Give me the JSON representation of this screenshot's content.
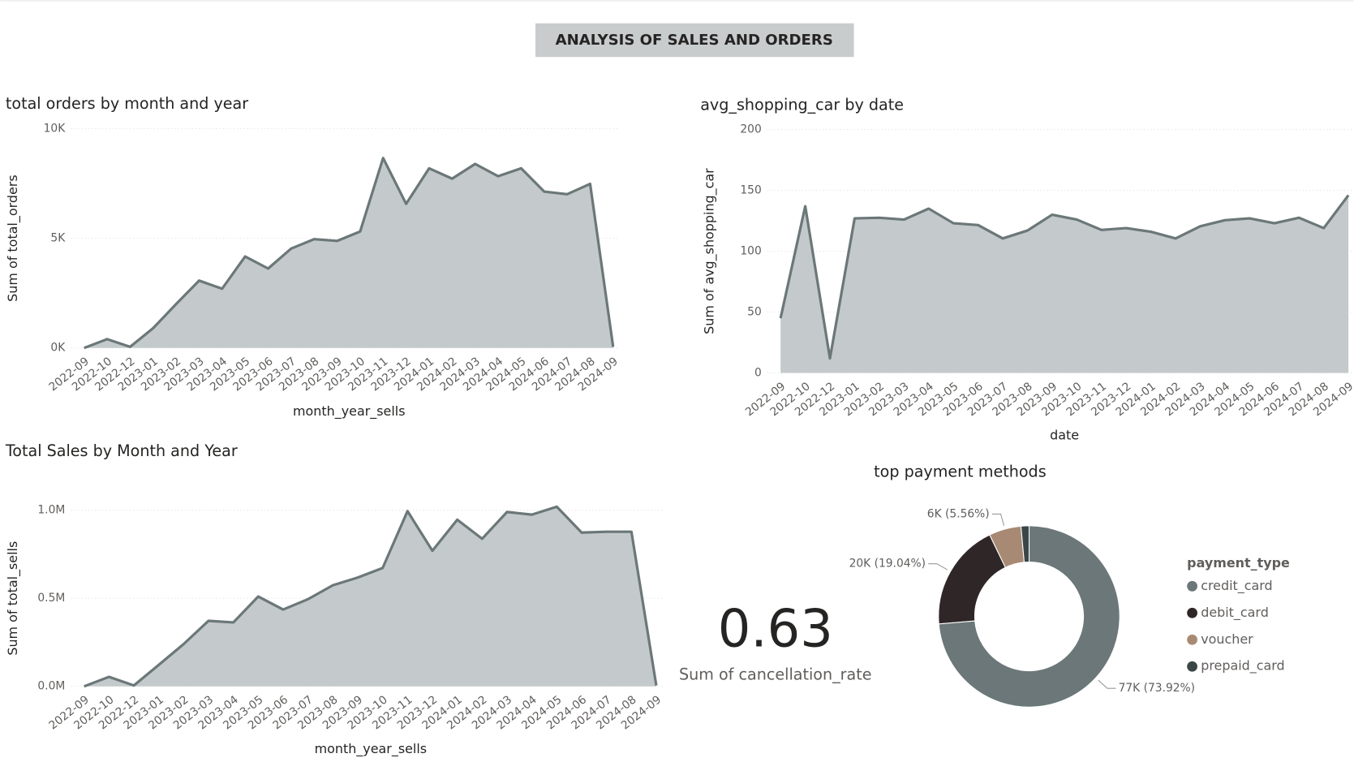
{
  "header": {
    "title": "ANALYSIS OF SALES AND ORDERS"
  },
  "card": {
    "value": "0.63",
    "label": "Sum of cancellation_rate"
  },
  "chart_data": [
    {
      "type": "area",
      "title": "total orders by month and year",
      "x_label": "month_year_sells",
      "y_label": "Sum of total_orders",
      "categories": [
        "2022-09",
        "2022-10",
        "2022-12",
        "2023-01",
        "2023-02",
        "2023-03",
        "2023-04",
        "2023-05",
        "2023-06",
        "2023-07",
        "2023-08",
        "2023-09",
        "2023-10",
        "2023-11",
        "2023-12",
        "2024-01",
        "2024-02",
        "2024-03",
        "2024-04",
        "2024-05",
        "2024-06",
        "2024-07",
        "2024-08",
        "2024-09"
      ],
      "values": [
        0,
        400,
        50,
        900,
        2000,
        3070,
        2700,
        4170,
        3620,
        4530,
        4960,
        4880,
        5310,
        8660,
        6570,
        8190,
        7720,
        8390,
        7830,
        8190,
        7130,
        7010,
        7480,
        50
      ],
      "color": "#6b7778",
      "fill": "#c4c9cb",
      "ylim": [
        0,
        10000
      ],
      "yticks": [
        {
          "value": 0,
          "label": "0K"
        },
        {
          "value": 5000,
          "label": "5K"
        },
        {
          "value": 10000,
          "label": "10K"
        }
      ],
      "grid": true
    },
    {
      "type": "area",
      "title": "avg_shopping_car by date",
      "x_label": "date",
      "y_label": "Sum of avg_shopping_car",
      "categories": [
        "2022-09",
        "2022-10",
        "2022-12",
        "2023-01",
        "2023-02",
        "2023-03",
        "2023-04",
        "2023-05",
        "2023-06",
        "2023-07",
        "2023-08",
        "2023-09",
        "2023-10",
        "2023-11",
        "2023-12",
        "2024-01",
        "2024-02",
        "2024-03",
        "2024-04",
        "2024-05",
        "2024-06",
        "2024-07",
        "2024-08",
        "2024-09"
      ],
      "values": [
        45,
        137,
        12,
        127,
        127.5,
        126,
        135,
        123,
        121.5,
        110.5,
        117,
        130,
        126,
        117.5,
        119,
        116,
        110.5,
        120.5,
        125.5,
        127,
        123,
        127.5,
        119,
        146
      ],
      "color": "#6b7778",
      "fill": "#c4c9cb",
      "ylim": [
        0,
        200
      ],
      "yticks": [
        0,
        50,
        100,
        150,
        200
      ],
      "grid": true
    },
    {
      "type": "area",
      "title": "Total Sales by Month and Year",
      "x_label": "month_year_sells",
      "y_label": "Sum of total_sells",
      "categories": [
        "2022-09",
        "2022-10",
        "2022-12",
        "2023-01",
        "2023-02",
        "2023-03",
        "2023-04",
        "2023-05",
        "2023-06",
        "2023-07",
        "2023-08",
        "2023-09",
        "2023-10",
        "2023-11",
        "2023-12",
        "2024-01",
        "2024-02",
        "2024-03",
        "2024-04",
        "2024-05",
        "2024-06",
        "2024-07",
        "2024-08",
        "2024-09"
      ],
      "values": [
        0,
        54000,
        5000,
        122000,
        240000,
        372000,
        363000,
        510000,
        436000,
        495000,
        574000,
        618000,
        672000,
        995000,
        770000,
        946000,
        838000,
        990000,
        975000,
        1020000,
        873000,
        878000,
        878000,
        5000
      ],
      "color": "#6b7778",
      "fill": "#c4c9cb",
      "ylim": [
        0,
        1000000
      ],
      "yticks": [
        {
          "value": 0,
          "label": "0.0M"
        },
        {
          "value": 500000,
          "label": "0.5M"
        },
        {
          "value": 1000000,
          "label": "1.0M"
        }
      ],
      "grid": true
    },
    {
      "type": "donut",
      "title": "top payment methods",
      "legend_title": "payment_type",
      "legend": "right",
      "categories": [
        "credit_card",
        "debit_card",
        "voucher",
        "prepaid_card"
      ],
      "values": [
        77000,
        20000,
        6000,
        1500
      ],
      "value_labels": [
        "77K (73.92%)",
        "20K (19.04%)",
        "6K (5.56%)",
        null
      ],
      "colors": [
        "#6b7778",
        "#2f2627",
        "#a88a74",
        "#3b4647"
      ]
    }
  ]
}
